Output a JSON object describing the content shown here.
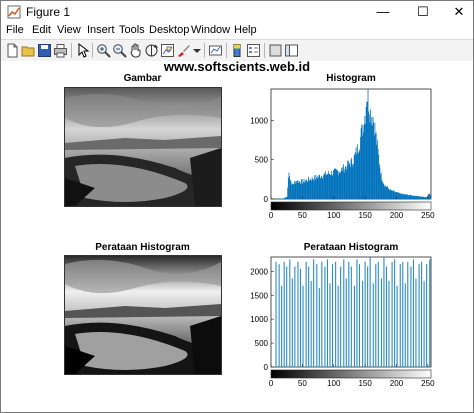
{
  "window": {
    "title": "Figure 1",
    "minimize": "—",
    "maximize": "☐",
    "close": "✕"
  },
  "menu": [
    "File",
    "Edit",
    "View",
    "Insert",
    "Tools",
    "Desktop",
    "Window",
    "Help"
  ],
  "toolbar_icons": [
    "new-figure-icon",
    "open-file-icon",
    "save-icon",
    "print-icon",
    "pointer-icon",
    "zoom-in-icon",
    "zoom-out-icon",
    "pan-icon",
    "rotate-3d-icon",
    "data-cursor-icon",
    "brush-icon",
    "link-icon",
    "insert-colorbar-icon",
    "insert-legend-icon",
    "hide-plot-tools-icon",
    "show-plot-tools-icon"
  ],
  "watermark": "www.softscients.web.id",
  "subplots": {
    "top_left_title": "Gambar",
    "top_right_title": "Histogram",
    "bottom_left_title": "Perataan Histogram",
    "bottom_right_title": "Perataan Histogram"
  },
  "colors": {
    "bar_fill": "#0072bd",
    "stem": "#2b8bc8"
  },
  "chart_data": [
    {
      "type": "bar",
      "title": "Histogram",
      "xlabel": "",
      "ylabel": "",
      "xlim": [
        0,
        255
      ],
      "ylim": [
        0,
        1400
      ],
      "yticks": [
        0,
        500,
        1000
      ],
      "xticks": [
        0,
        50,
        100,
        150,
        200,
        250
      ],
      "grid": false,
      "x_colorbar": "grayscale 0-255",
      "envelope": [
        [
          0,
          0
        ],
        [
          16,
          2
        ],
        [
          20,
          8
        ],
        [
          25,
          30
        ],
        [
          28,
          380
        ],
        [
          30,
          250
        ],
        [
          33,
          180
        ],
        [
          40,
          230
        ],
        [
          50,
          220
        ],
        [
          60,
          250
        ],
        [
          70,
          270
        ],
        [
          80,
          300
        ],
        [
          90,
          320
        ],
        [
          100,
          340
        ],
        [
          110,
          360
        ],
        [
          120,
          420
        ],
        [
          130,
          480
        ],
        [
          140,
          700
        ],
        [
          145,
          900
        ],
        [
          150,
          1100
        ],
        [
          152,
          1350
        ],
        [
          155,
          1250
        ],
        [
          158,
          1100
        ],
        [
          162,
          1050
        ],
        [
          166,
          850
        ],
        [
          170,
          600
        ],
        [
          175,
          300
        ],
        [
          180,
          180
        ],
        [
          190,
          110
        ],
        [
          200,
          80
        ],
        [
          210,
          60
        ],
        [
          220,
          50
        ],
        [
          230,
          40
        ],
        [
          240,
          30
        ],
        [
          248,
          20
        ],
        [
          252,
          80
        ],
        [
          255,
          0
        ]
      ]
    },
    {
      "type": "bar",
      "title": "Perataan Histogram",
      "xlabel": "",
      "ylabel": "",
      "xlim": [
        0,
        255
      ],
      "ylim": [
        0,
        2300
      ],
      "yticks": [
        0,
        500,
        1000,
        1500,
        2000
      ],
      "xticks": [
        0,
        50,
        100,
        150,
        200,
        250
      ],
      "grid": false,
      "x_colorbar": "grayscale 0-255",
      "x": [
        8,
        13,
        17,
        21,
        25,
        30,
        34,
        38,
        43,
        47,
        51,
        56,
        60,
        64,
        68,
        73,
        77,
        81,
        86,
        90,
        94,
        98,
        103,
        107,
        111,
        116,
        120,
        124,
        128,
        133,
        137,
        141,
        146,
        150,
        154,
        158,
        163,
        167,
        171,
        176,
        180,
        184,
        188,
        193,
        197,
        201,
        206,
        210,
        214,
        218,
        223,
        227,
        231,
        236,
        240,
        244,
        248,
        253
      ],
      "values": [
        2200,
        2150,
        1700,
        2200,
        2100,
        2250,
        1850,
        2100,
        2200,
        2050,
        1700,
        2200,
        2100,
        1800,
        2250,
        2150,
        1650,
        2200,
        2100,
        2250,
        1750,
        2150,
        2200,
        1700,
        2100,
        2250,
        1850,
        2200,
        2100,
        1700,
        2250,
        2150,
        1800,
        2200,
        2100,
        2300,
        1750,
        2150,
        2200,
        1850,
        2300,
        2100,
        1800,
        2200,
        2250,
        1700,
        2150,
        2200,
        1750,
        2200,
        2100,
        2250,
        1850,
        2150,
        2200,
        1800,
        2150,
        2250
      ]
    }
  ]
}
